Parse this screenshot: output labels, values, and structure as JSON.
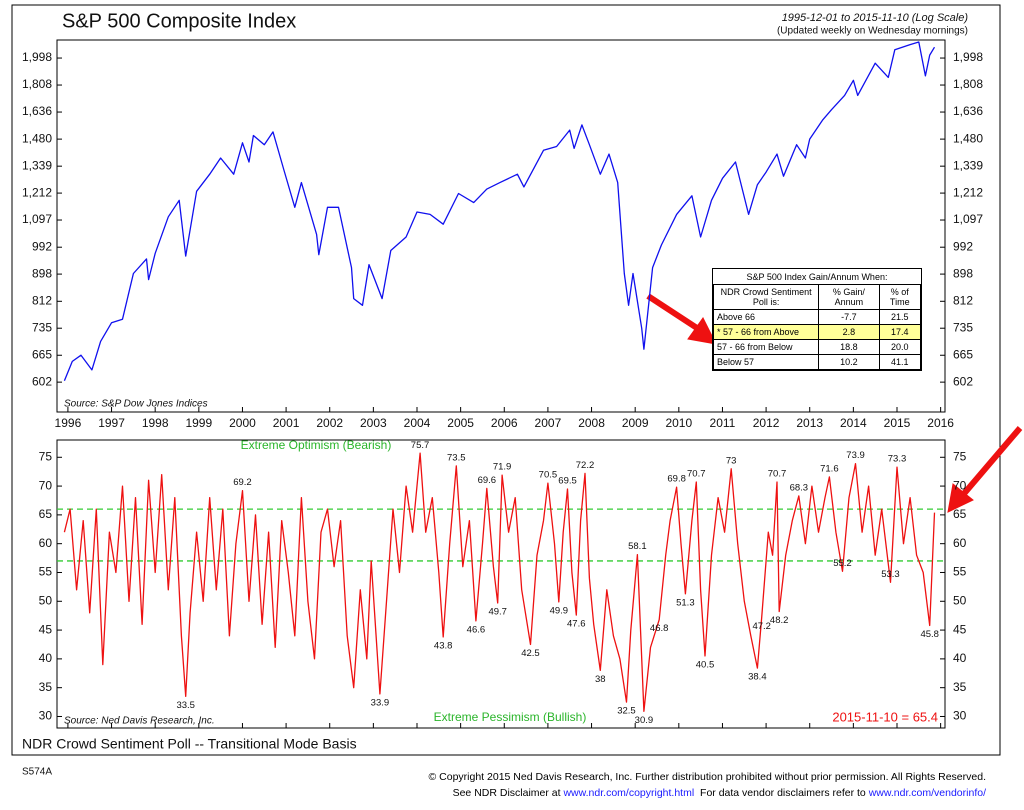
{
  "chart_data": [
    {
      "type": "line",
      "title": "S&P 500 Composite Index",
      "subtitle": "1995-12-01 to 2015-11-10 (Log Scale)",
      "note": "(Updated weekly on Wednesday mornings)",
      "source": "Source: S&P Dow Jones Indices",
      "log_scale": true,
      "xlim": [
        1995.75,
        2016.1
      ],
      "ylim": [
        539,
        2136
      ],
      "xticks": [
        1996,
        1997,
        1998,
        1999,
        2000,
        2001,
        2002,
        2003,
        2004,
        2005,
        2006,
        2007,
        2008,
        2009,
        2010,
        2011,
        2012,
        2013,
        2014,
        2015,
        2016
      ],
      "yticks": [
        602,
        665,
        735,
        812,
        898,
        992,
        {
          "value": 1097,
          "label": "1,097"
        },
        {
          "value": 1212,
          "label": "1,212"
        },
        {
          "value": 1339,
          "label": "1,339"
        },
        {
          "value": 1480,
          "label": "1,480"
        },
        {
          "value": 1636,
          "label": "1,636"
        },
        {
          "value": 1808,
          "label": "1,808"
        },
        {
          "value": 1998,
          "label": "1,998"
        }
      ],
      "x": [
        1995.92,
        1996.1,
        1996.3,
        1996.55,
        1996.75,
        1997.0,
        1997.25,
        1997.5,
        1997.8,
        1997.85,
        1998.0,
        1998.3,
        1998.55,
        1998.7,
        1998.95,
        1999.25,
        1999.5,
        1999.8,
        2000.0,
        2000.15,
        2000.25,
        2000.5,
        2000.7,
        2000.95,
        2001.2,
        2001.35,
        2001.7,
        2001.75,
        2001.95,
        2002.2,
        2002.5,
        2002.55,
        2002.75,
        2002.9,
        2003.2,
        2003.4,
        2003.75,
        2004.0,
        2004.3,
        2004.6,
        2004.95,
        2005.3,
        2005.6,
        2005.9,
        2006.3,
        2006.45,
        2006.9,
        2007.2,
        2007.5,
        2007.6,
        2007.78,
        2007.95,
        2008.2,
        2008.4,
        2008.6,
        2008.75,
        2008.85,
        2008.95,
        2009.15,
        2009.2,
        2009.4,
        2009.6,
        2009.95,
        2010.3,
        2010.5,
        2010.75,
        2011.0,
        2011.3,
        2011.6,
        2011.8,
        2012.0,
        2012.25,
        2012.4,
        2012.7,
        2012.9,
        2013.0,
        2013.3,
        2013.5,
        2013.8,
        2014.0,
        2014.1,
        2014.5,
        2014.8,
        2014.95,
        2015.3,
        2015.5,
        2015.65,
        2015.75,
        2015.86
      ],
      "series": [
        {
          "color": "#1010ee",
          "values": [
            605,
            650,
            665,
            630,
            700,
            750,
            760,
            900,
            950,
            880,
            970,
            1110,
            1180,
            960,
            1220,
            1300,
            1380,
            1300,
            1460,
            1360,
            1500,
            1450,
            1520,
            1320,
            1150,
            1260,
            1040,
            965,
            1150,
            1150,
            920,
            820,
            800,
            930,
            820,
            980,
            1030,
            1130,
            1120,
            1080,
            1210,
            1170,
            1230,
            1260,
            1300,
            1240,
            1420,
            1440,
            1530,
            1430,
            1560,
            1450,
            1300,
            1400,
            1260,
            900,
            800,
            900,
            735,
            680,
            920,
            1000,
            1120,
            1200,
            1030,
            1180,
            1280,
            1360,
            1120,
            1250,
            1310,
            1400,
            1290,
            1450,
            1380,
            1480,
            1590,
            1650,
            1740,
            1840,
            1740,
            1960,
            1860,
            2060,
            2100,
            2120,
            1870,
            2020,
            2080
          ]
        }
      ],
      "table": {
        "title": "S&P 500 Index Gain/Annum When:",
        "header": [
          "NDR Crowd Sentiment Poll is:",
          "% Gain/ Annum",
          "% of Time"
        ],
        "rows": [
          [
            "Above 66",
            "-7.7",
            "21.5"
          ],
          [
            "* 57 - 66 from Above",
            "2.8",
            "17.4"
          ],
          [
            "57 - 66 from Below",
            "18.8",
            "20.0"
          ],
          [
            "Below 57",
            "10.2",
            "41.1"
          ]
        ]
      }
    },
    {
      "type": "line",
      "title": "NDR Crowd Sentiment Poll -- Transitional Mode Basis",
      "source": "Source: Ned Davis Research, Inc.",
      "optimism_label": "Extreme Optimism (Bearish)",
      "pessimism_label": "Extreme Pessimism (Bullish)",
      "latest": "2015-11-10 = 65.4",
      "xlim": [
        1995.75,
        2016.1
      ],
      "ylim": [
        28,
        78
      ],
      "yticks": [
        30,
        35,
        40,
        45,
        50,
        55,
        60,
        65,
        70,
        75
      ],
      "guides": [
        66,
        57
      ],
      "guide_color": "#33cc33",
      "x": [
        1995.92,
        1996.05,
        1996.2,
        1996.35,
        1996.5,
        1996.65,
        1996.8,
        1996.95,
        1997.1,
        1997.25,
        1997.4,
        1997.55,
        1997.7,
        1997.85,
        1998.0,
        1998.15,
        1998.3,
        1998.45,
        1998.6,
        1998.7,
        1998.8,
        1998.95,
        1999.1,
        1999.25,
        1999.4,
        1999.55,
        1999.7,
        1999.85,
        2000.0,
        2000.15,
        2000.3,
        2000.45,
        2000.6,
        2000.75,
        2000.9,
        2001.05,
        2001.2,
        2001.35,
        2001.5,
        2001.65,
        2001.8,
        2001.95,
        2002.1,
        2002.25,
        2002.4,
        2002.55,
        2002.7,
        2002.85,
        2002.95,
        2003.15,
        2003.3,
        2003.45,
        2003.6,
        2003.75,
        2003.9,
        2004.07,
        2004.2,
        2004.35,
        2004.5,
        2004.6,
        2004.75,
        2004.9,
        2005.05,
        2005.2,
        2005.35,
        2005.5,
        2005.6,
        2005.75,
        2005.85,
        2005.95,
        2006.1,
        2006.25,
        2006.4,
        2006.6,
        2006.75,
        2006.9,
        2007.0,
        2007.15,
        2007.25,
        2007.35,
        2007.45,
        2007.55,
        2007.65,
        2007.75,
        2007.85,
        2007.95,
        2008.05,
        2008.2,
        2008.35,
        2008.5,
        2008.65,
        2008.8,
        2008.9,
        2009.05,
        2009.2,
        2009.35,
        2009.55,
        2009.7,
        2009.8,
        2009.95,
        2010.05,
        2010.15,
        2010.3,
        2010.4,
        2010.5,
        2010.6,
        2010.75,
        2010.9,
        2011.05,
        2011.2,
        2011.35,
        2011.5,
        2011.65,
        2011.8,
        2011.9,
        2012.05,
        2012.15,
        2012.25,
        2012.3,
        2012.45,
        2012.6,
        2012.75,
        2012.9,
        2013.05,
        2013.2,
        2013.35,
        2013.45,
        2013.6,
        2013.75,
        2013.9,
        2014.05,
        2014.2,
        2014.35,
        2014.5,
        2014.65,
        2014.85,
        2015.0,
        2015.15,
        2015.3,
        2015.45,
        2015.6,
        2015.75,
        2015.86
      ],
      "series": [
        {
          "color": "#ee1111",
          "values": [
            62,
            66,
            52,
            64,
            48,
            66,
            39,
            62,
            55,
            70,
            50,
            68,
            46,
            71,
            55,
            72,
            52,
            68,
            44,
            33.5,
            48,
            62,
            50,
            68,
            52,
            66,
            44,
            60,
            69.2,
            50,
            65,
            46,
            62,
            42,
            64,
            55,
            44,
            68,
            50,
            40,
            62,
            66,
            56,
            64,
            44,
            35,
            52,
            40,
            57,
            33.9,
            50,
            66,
            55,
            70,
            62,
            75.7,
            62,
            68,
            55,
            43.8,
            60,
            73.5,
            56,
            64,
            46.6,
            60,
            69.6,
            56,
            49.7,
            71.9,
            62,
            68,
            52,
            42.5,
            58,
            64,
            70.5,
            60,
            49.9,
            62,
            69.5,
            55,
            47.6,
            64,
            72.2,
            54,
            46,
            38.0,
            52,
            44,
            40,
            32.5,
            45,
            58.1,
            30.9,
            42,
            46.8,
            58,
            64,
            69.8,
            60,
            51.3,
            64,
            70.7,
            52,
            40.5,
            58,
            68,
            62,
            73.0,
            60,
            50,
            44,
            38.4,
            47.2,
            62,
            58,
            70.7,
            48.2,
            58,
            64,
            68.3,
            60,
            70,
            62,
            68,
            71.6,
            62,
            55.2,
            68,
            73.9,
            62,
            70,
            58,
            66,
            53.3,
            73.3,
            60,
            68,
            58,
            55,
            45.8,
            65.4
          ]
        }
      ],
      "point_labels": [
        {
          "x": 1998.7,
          "value": 33.5
        },
        {
          "x": 2000.0,
          "value": 69.2
        },
        {
          "x": 2003.15,
          "value": 33.9
        },
        {
          "x": 2004.07,
          "value": 75.7
        },
        {
          "x": 2004.6,
          "value": 43.8
        },
        {
          "x": 2004.9,
          "value": 73.5
        },
        {
          "x": 2005.35,
          "value": 46.6
        },
        {
          "x": 2005.6,
          "value": 69.6
        },
        {
          "x": 2005.85,
          "value": 49.7
        },
        {
          "x": 2005.95,
          "value": 71.9
        },
        {
          "x": 2006.6,
          "value": 42.5
        },
        {
          "x": 2007.0,
          "value": 70.5
        },
        {
          "x": 2007.25,
          "value": 49.9
        },
        {
          "x": 2007.45,
          "value": 69.5
        },
        {
          "x": 2007.65,
          "value": 47.6
        },
        {
          "x": 2007.85,
          "value": 72.2
        },
        {
          "x": 2008.2,
          "value": 38.0
        },
        {
          "x": 2008.8,
          "value": 32.5
        },
        {
          "x": 2009.05,
          "value": 58.1
        },
        {
          "x": 2009.2,
          "value": 30.9
        },
        {
          "x": 2009.55,
          "value": 46.8
        },
        {
          "x": 2009.95,
          "value": 69.8
        },
        {
          "x": 2010.15,
          "value": 51.3
        },
        {
          "x": 2010.4,
          "value": 70.7
        },
        {
          "x": 2010.6,
          "value": 40.5
        },
        {
          "x": 2011.2,
          "value": 73.0
        },
        {
          "x": 2011.8,
          "value": 38.4
        },
        {
          "x": 2011.9,
          "value": 47.2
        },
        {
          "x": 2012.25,
          "value": 70.7
        },
        {
          "x": 2012.3,
          "value": 48.2
        },
        {
          "x": 2012.75,
          "value": 68.3
        },
        {
          "x": 2013.45,
          "value": 71.6
        },
        {
          "x": 2013.75,
          "value": 55.2
        },
        {
          "x": 2014.05,
          "value": 73.9
        },
        {
          "x": 2014.85,
          "value": 53.3
        },
        {
          "x": 2015.0,
          "value": 73.3
        },
        {
          "x": 2015.75,
          "value": 45.8
        }
      ]
    }
  ],
  "footer": {
    "code": "S574A",
    "copyright": "© Copyright 2015 Ned Davis Research, Inc. Further distribution prohibited without prior permission. All Rights Reserved.",
    "disclaimer": "See NDR Disclaimer at",
    "link1": "www.ndr.com/copyright.html",
    "vendor": "For data vendor disclaimers refer to",
    "link2": "www.ndr.com/vendorinfo/"
  }
}
